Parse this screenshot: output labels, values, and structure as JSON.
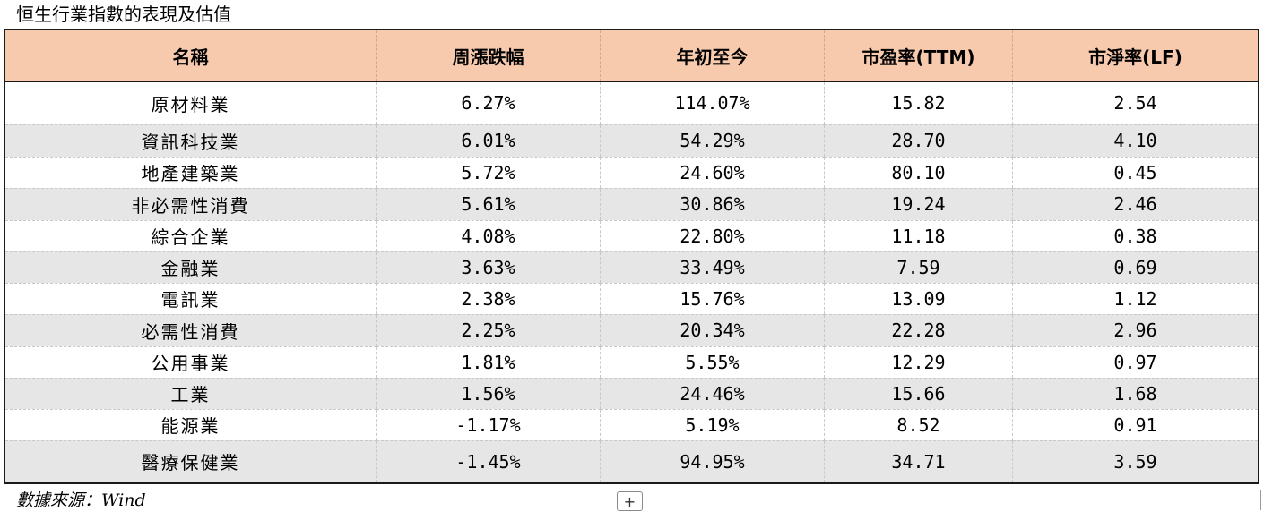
{
  "title": "恒生行業指數的表現及估值",
  "table": {
    "headers": [
      "名稱",
      "周漲跌幅",
      "年初至今",
      "市盈率(TTM)",
      "市淨率(LF)"
    ],
    "rows": [
      [
        "原材料業",
        "6.27%",
        "114.07%",
        "15.82",
        "2.54"
      ],
      [
        "資訊科技業",
        "6.01%",
        "54.29%",
        "28.70",
        "4.10"
      ],
      [
        "地產建築業",
        "5.72%",
        "24.60%",
        "80.10",
        "0.45"
      ],
      [
        "非必需性消費",
        "5.61%",
        "30.86%",
        "19.24",
        "2.46"
      ],
      [
        "綜合企業",
        "4.08%",
        "22.80%",
        "11.18",
        "0.38"
      ],
      [
        "金融業",
        "3.63%",
        "33.49%",
        "7.59",
        "0.69"
      ],
      [
        "電訊業",
        "2.38%",
        "15.76%",
        "13.09",
        "1.12"
      ],
      [
        "必需性消費",
        "2.25%",
        "20.34%",
        "22.28",
        "2.96"
      ],
      [
        "公用事業",
        "1.81%",
        "5.55%",
        "12.29",
        "0.97"
      ],
      [
        "工業",
        "1.56%",
        "24.46%",
        "15.66",
        "1.68"
      ],
      [
        "能源業",
        "-1.17%",
        "5.19%",
        "8.52",
        "0.91"
      ],
      [
        "醫療保健業",
        "-1.45%",
        "94.95%",
        "34.71",
        "3.59"
      ]
    ]
  },
  "source": "數據來源：Wind",
  "add_button": "+",
  "colors": {
    "header_bg": "#f7c9ad",
    "alt_row_bg": "#e6e6e6"
  }
}
